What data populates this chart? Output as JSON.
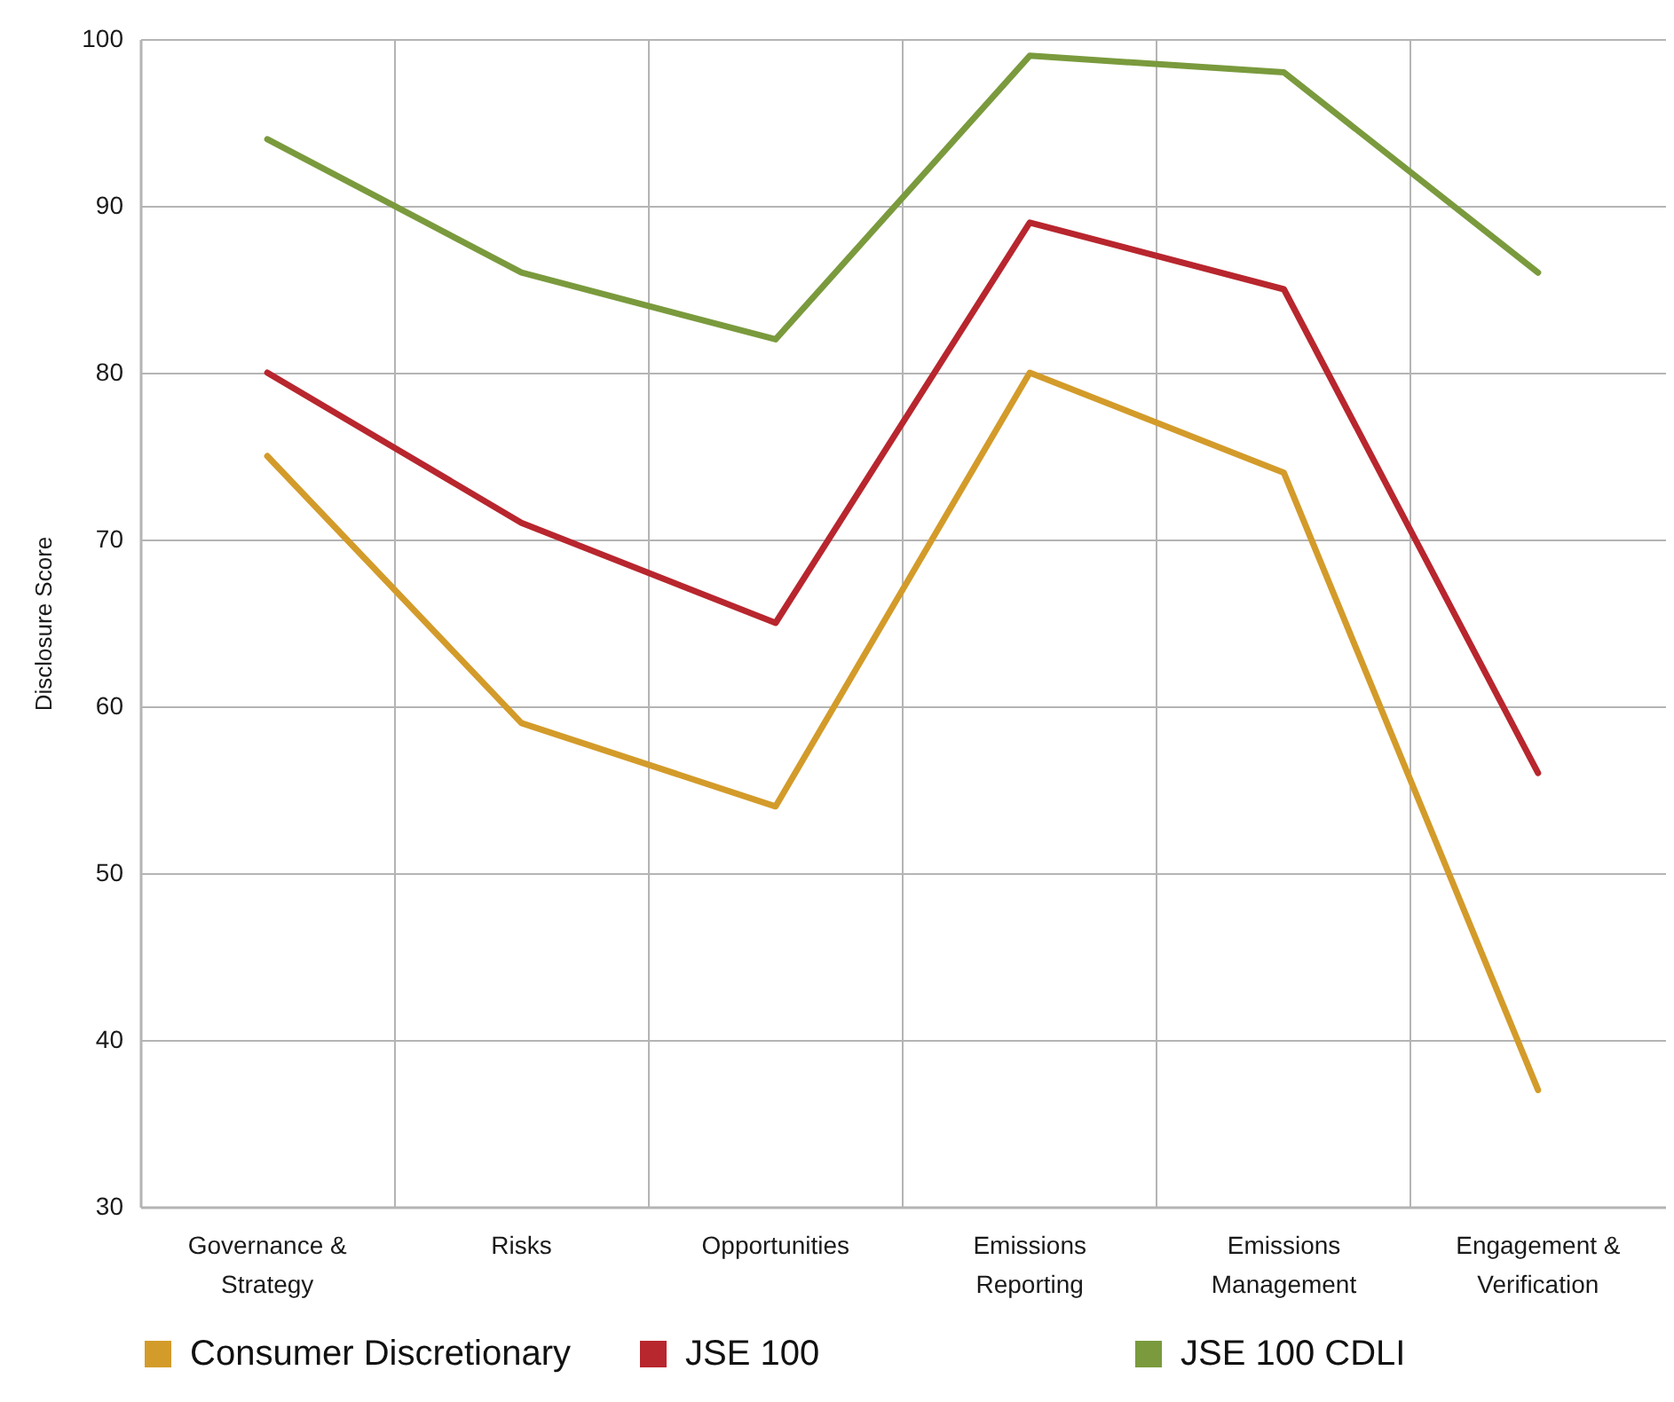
{
  "chart_data": {
    "type": "line",
    "ylabel": "Disclosure Score",
    "categories": [
      "Governance & Strategy",
      "Risks",
      "Opportunities",
      "Emissions Reporting",
      "Emissions Management",
      "Engagement & Verification"
    ],
    "series": [
      {
        "name": "Consumer Discretionary",
        "color": "#d39b2a",
        "values": [
          75,
          59,
          54,
          80,
          74,
          37
        ]
      },
      {
        "name": "JSE 100",
        "color": "#b8262e",
        "values": [
          80,
          71,
          65,
          89,
          85,
          56
        ]
      },
      {
        "name": "JSE 100 CDLI",
        "color": "#7a9a3d",
        "values": [
          94,
          86,
          82,
          99,
          98,
          86
        ]
      }
    ],
    "ylim": [
      30,
      100
    ],
    "yticks": [
      30,
      40,
      50,
      60,
      70,
      80,
      90,
      100
    ],
    "grid": true,
    "legend": "bottom"
  }
}
